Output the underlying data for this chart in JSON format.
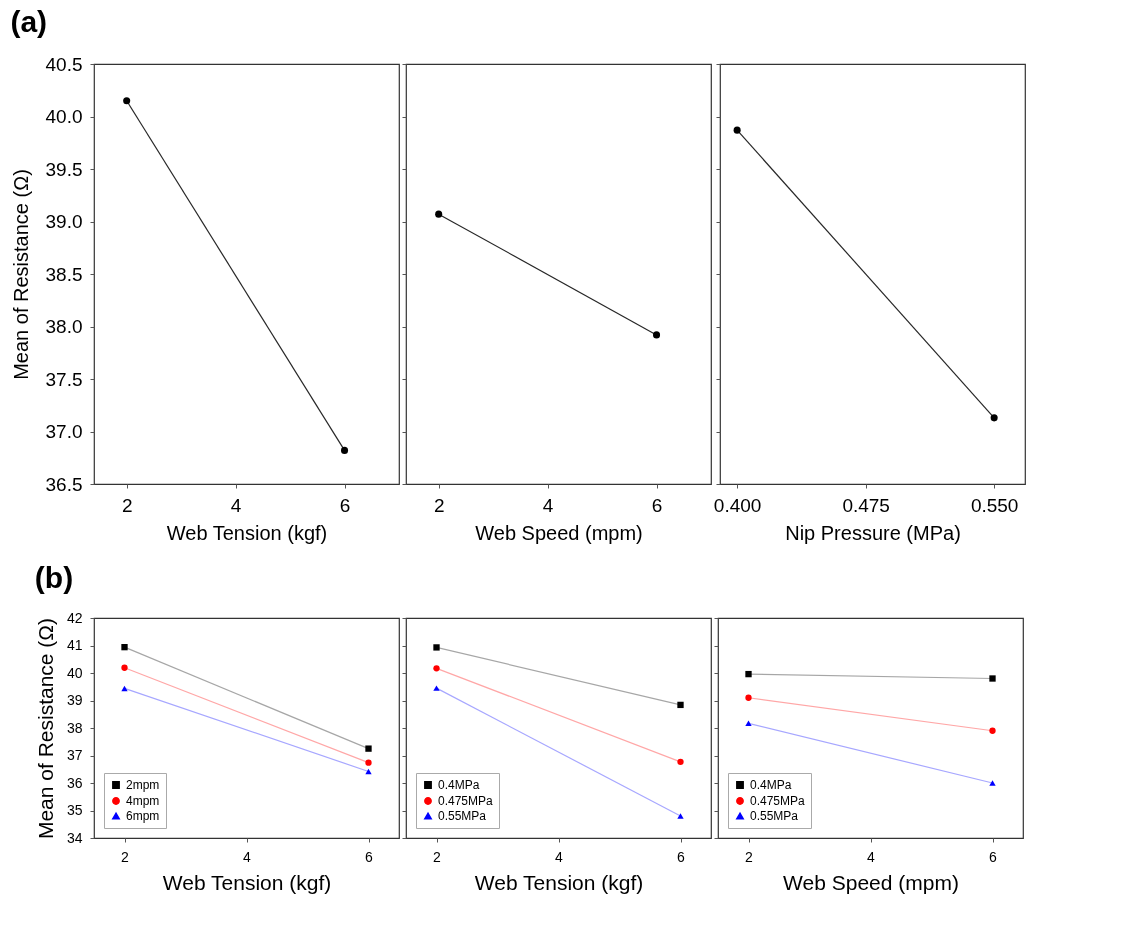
{
  "chart_data": [
    {
      "type": "line",
      "title": "(a)",
      "xlabel": "Web Tension (kgf)",
      "ylabel": "Mean of Resistance (Ω)",
      "x": [
        2,
        6
      ],
      "xlim": [
        1.4,
        7.0
      ],
      "xticks": [
        2,
        4,
        6
      ],
      "ylim": [
        36.5,
        40.5
      ],
      "yticks": [
        {
          "value": 36.5,
          "label": "36.5"
        },
        {
          "value": 37,
          "label": "37.0"
        },
        {
          "value": 37.5,
          "label": "37.5"
        },
        {
          "value": 38,
          "label": "38.0"
        },
        {
          "value": 38.5,
          "label": "38.5"
        },
        {
          "value": 39,
          "label": "39.0"
        },
        {
          "value": 39.5,
          "label": "39.5"
        },
        {
          "value": 40,
          "label": "40.0"
        },
        {
          "value": 40.5,
          "label": "40.5"
        }
      ],
      "marker": "circle",
      "grid": false,
      "series": [
        {
          "color": "#000000",
          "values": [
            40.15,
            36.82
          ]
        }
      ]
    },
    {
      "type": "line",
      "xlabel": "Web Speed (mpm)",
      "x": [
        2,
        6
      ],
      "xlim": [
        1.4,
        7.0
      ],
      "xticks": [
        2,
        4,
        6
      ],
      "ylim": [
        36.5,
        40.5
      ],
      "yticks": [
        36.5,
        37,
        37.5,
        38,
        38.5,
        39,
        39.5,
        40,
        40.5
      ],
      "tick_labels": "x",
      "marker": "circle",
      "grid": false,
      "series": [
        {
          "color": "#000000",
          "values": [
            39.07,
            37.92
          ]
        }
      ]
    },
    {
      "type": "line",
      "xlabel": "Nip Pressure (MPa)",
      "x": [
        0.4,
        0.55
      ],
      "xlim": [
        0.39,
        0.568
      ],
      "xticks": [
        {
          "value": 0.4,
          "label": "0.400"
        },
        {
          "value": 0.475,
          "label": "0.475"
        },
        {
          "value": 0.55,
          "label": "0.550"
        }
      ],
      "ylim": [
        36.5,
        40.5
      ],
      "yticks": [
        36.5,
        37,
        37.5,
        38,
        38.5,
        39,
        39.5,
        40,
        40.5
      ],
      "tick_labels": "x",
      "marker": "circle",
      "grid": false,
      "series": [
        {
          "color": "#000000",
          "values": [
            39.87,
            37.13
          ]
        }
      ]
    },
    {
      "type": "line",
      "title": "(b)",
      "xlabel": "Web Tension (kgf)",
      "ylabel": "Mean of Resistance (Ω)",
      "x": [
        2,
        6
      ],
      "xlim": [
        1.5,
        6.5
      ],
      "xticks": [
        2,
        4,
        6
      ],
      "ylim": [
        34,
        42
      ],
      "yticks": [
        34,
        35,
        36,
        37,
        38,
        39,
        40,
        41,
        42
      ],
      "grid": false,
      "legend": "bottom left",
      "series": [
        {
          "name": "2mpm",
          "color": "#000000",
          "marker": "square",
          "values": [
            40.94,
            37.25
          ]
        },
        {
          "name": "4mpm",
          "color": "#ff0000",
          "marker": "circle",
          "values": [
            40.19,
            36.74
          ]
        },
        {
          "name": "6mpm",
          "color": "#0000ff",
          "marker": "triangle",
          "values": [
            39.44,
            36.42
          ]
        }
      ]
    },
    {
      "type": "line",
      "xlabel": "Web Tension (kgf)",
      "x": [
        2,
        6
      ],
      "xlim": [
        1.5,
        6.5
      ],
      "xticks": [
        2,
        4,
        6
      ],
      "ylim": [
        34,
        42
      ],
      "yticks": [
        34,
        35,
        36,
        37,
        38,
        39,
        40,
        41,
        42
      ],
      "tick_labels": "x",
      "grid": false,
      "legend": "bottom left",
      "series": [
        {
          "name": "0.4MPa",
          "color": "#000000",
          "marker": "square",
          "values": [
            40.93,
            38.84
          ]
        },
        {
          "name": "0.475MPa",
          "color": "#ff0000",
          "marker": "circle",
          "values": [
            40.17,
            36.77
          ]
        },
        {
          "name": "0.55MPa",
          "color": "#0000ff",
          "marker": "triangle",
          "values": [
            39.45,
            34.8
          ]
        }
      ]
    },
    {
      "type": "line",
      "xlabel": "Web Speed (mpm)",
      "x": [
        2,
        6
      ],
      "xlim": [
        1.5,
        6.5
      ],
      "xticks": [
        2,
        4,
        6
      ],
      "ylim": [
        34,
        42
      ],
      "yticks": [
        34,
        35,
        36,
        37,
        38,
        39,
        40,
        41,
        42
      ],
      "tick_labels": "x",
      "grid": false,
      "legend": "bottom left",
      "series": [
        {
          "name": "0.4MPa",
          "color": "#000000",
          "marker": "square",
          "values": [
            39.96,
            39.8
          ]
        },
        {
          "name": "0.475MPa",
          "color": "#ff0000",
          "marker": "circle",
          "values": [
            39.1,
            37.9
          ]
        },
        {
          "name": "0.55MPa",
          "color": "#0000ff",
          "marker": "triangle",
          "values": [
            38.17,
            36.0
          ]
        }
      ]
    }
  ]
}
